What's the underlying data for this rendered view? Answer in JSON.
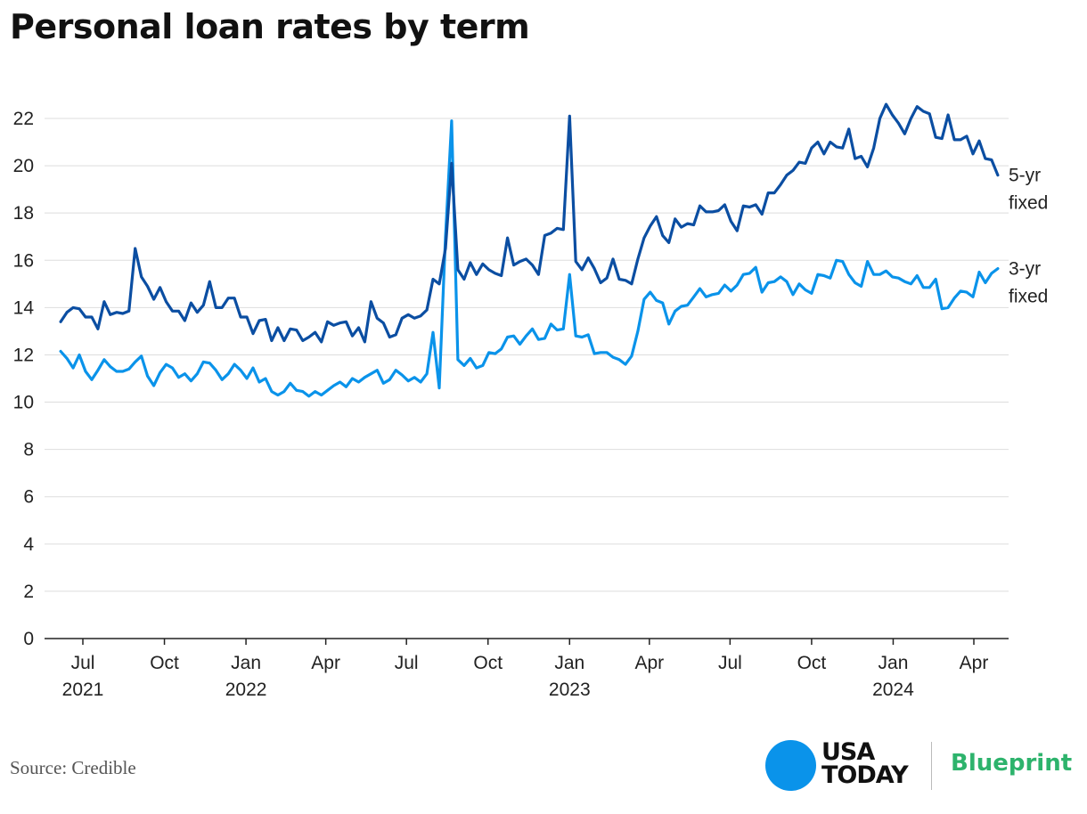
{
  "chart_data": {
    "type": "line",
    "title": "Personal loan rates by term",
    "ylim": [
      0,
      22
    ],
    "yticks": [
      0,
      2,
      4,
      6,
      8,
      10,
      12,
      14,
      16,
      18,
      20,
      22
    ],
    "grid": "horizontal",
    "xticks": [
      {
        "date": "2021-07-01",
        "label": "Jul",
        "year": "2021"
      },
      {
        "date": "2021-10-01",
        "label": "Oct",
        "year": ""
      },
      {
        "date": "2022-01-01",
        "label": "Jan",
        "year": "2022"
      },
      {
        "date": "2022-04-01",
        "label": "Apr",
        "year": ""
      },
      {
        "date": "2022-07-01",
        "label": "Jul",
        "year": ""
      },
      {
        "date": "2022-10-01",
        "label": "Oct",
        "year": ""
      },
      {
        "date": "2023-01-01",
        "label": "Jan",
        "year": "2023"
      },
      {
        "date": "2023-04-01",
        "label": "Apr",
        "year": ""
      },
      {
        "date": "2023-07-01",
        "label": "Jul",
        "year": ""
      },
      {
        "date": "2023-10-01",
        "label": "Oct",
        "year": ""
      },
      {
        "date": "2024-01-01",
        "label": "Jan",
        "year": "2024"
      },
      {
        "date": "2024-04-01",
        "label": "Apr",
        "year": ""
      }
    ],
    "x": [
      "2021-06-06",
      "2021-06-13",
      "2021-06-20",
      "2021-06-27",
      "2021-07-04",
      "2021-07-11",
      "2021-07-18",
      "2021-07-25",
      "2021-08-01",
      "2021-08-08",
      "2021-08-15",
      "2021-08-22",
      "2021-08-29",
      "2021-09-05",
      "2021-09-12",
      "2021-09-19",
      "2021-09-26",
      "2021-10-03",
      "2021-10-10",
      "2021-10-17",
      "2021-10-24",
      "2021-10-31",
      "2021-11-07",
      "2021-11-14",
      "2021-11-21",
      "2021-11-28",
      "2021-12-05",
      "2021-12-12",
      "2021-12-19",
      "2021-12-26",
      "2022-01-02",
      "2022-01-09",
      "2022-01-16",
      "2022-01-23",
      "2022-01-30",
      "2022-02-06",
      "2022-02-13",
      "2022-02-20",
      "2022-02-27",
      "2022-03-06",
      "2022-03-13",
      "2022-03-20",
      "2022-03-27",
      "2022-04-03",
      "2022-04-10",
      "2022-04-17",
      "2022-04-24",
      "2022-05-01",
      "2022-05-08",
      "2022-05-15",
      "2022-05-22",
      "2022-05-29",
      "2022-06-05",
      "2022-06-12",
      "2022-06-19",
      "2022-06-26",
      "2022-07-03",
      "2022-07-10",
      "2022-07-17",
      "2022-07-24",
      "2022-07-31",
      "2022-08-07",
      "2022-08-14",
      "2022-08-21",
      "2022-08-28",
      "2022-09-04",
      "2022-09-11",
      "2022-09-18",
      "2022-09-25",
      "2022-10-02",
      "2022-10-09",
      "2022-10-16",
      "2022-10-23",
      "2022-10-30",
      "2022-11-06",
      "2022-11-13",
      "2022-11-20",
      "2022-11-27",
      "2022-12-04",
      "2022-12-11",
      "2022-12-18",
      "2022-12-25",
      "2023-01-01",
      "2023-01-08",
      "2023-01-15",
      "2023-01-22",
      "2023-01-29",
      "2023-02-05",
      "2023-02-12",
      "2023-02-19",
      "2023-02-26",
      "2023-03-05",
      "2023-03-12",
      "2023-03-19",
      "2023-03-26",
      "2023-04-02",
      "2023-04-09",
      "2023-04-16",
      "2023-04-23",
      "2023-04-30",
      "2023-05-07",
      "2023-05-14",
      "2023-05-21",
      "2023-05-28",
      "2023-06-04",
      "2023-06-11",
      "2023-06-18",
      "2023-06-25",
      "2023-07-02",
      "2023-07-09",
      "2023-07-16",
      "2023-07-23",
      "2023-07-30",
      "2023-08-06",
      "2023-08-13",
      "2023-08-20",
      "2023-08-27",
      "2023-09-03",
      "2023-09-10",
      "2023-09-17",
      "2023-09-24",
      "2023-10-01",
      "2023-10-08",
      "2023-10-15",
      "2023-10-22",
      "2023-10-29",
      "2023-11-05",
      "2023-11-12",
      "2023-11-19",
      "2023-11-26",
      "2023-12-03",
      "2023-12-10",
      "2023-12-17",
      "2023-12-24",
      "2023-12-31",
      "2024-01-07",
      "2024-01-14",
      "2024-01-21",
      "2024-01-28",
      "2024-02-04",
      "2024-02-11",
      "2024-02-18",
      "2024-02-25",
      "2024-03-03",
      "2024-03-10",
      "2024-03-17",
      "2024-03-24",
      "2024-03-31",
      "2024-04-07",
      "2024-04-14",
      "2024-04-21",
      "2024-04-28"
    ],
    "series": [
      {
        "name": "5-yr fixed",
        "label_lines": [
          "5-yr",
          "fixed"
        ],
        "color": "#0b4ea2",
        "values": [
          13.4,
          13.8,
          14.0,
          13.95,
          13.6,
          13.6,
          13.1,
          14.25,
          13.7,
          13.8,
          13.75,
          13.85,
          16.5,
          15.3,
          14.9,
          14.35,
          14.85,
          14.25,
          13.85,
          13.85,
          13.45,
          14.2,
          13.8,
          14.1,
          15.1,
          14.0,
          14.0,
          14.4,
          14.4,
          13.6,
          13.6,
          12.9,
          13.45,
          13.5,
          12.6,
          13.15,
          12.6,
          13.1,
          13.05,
          12.6,
          12.75,
          12.95,
          12.55,
          13.4,
          13.25,
          13.35,
          13.4,
          12.8,
          13.15,
          12.55,
          14.25,
          13.55,
          13.35,
          12.75,
          12.85,
          13.55,
          13.7,
          13.55,
          13.65,
          13.9,
          15.2,
          15.0,
          16.5,
          20.1,
          15.6,
          15.2,
          15.9,
          15.4,
          15.85,
          15.6,
          15.45,
          15.35,
          16.95,
          15.8,
          15.95,
          16.05,
          15.8,
          15.4,
          17.05,
          17.15,
          17.35,
          17.3,
          22.1,
          15.95,
          15.6,
          16.1,
          15.65,
          15.05,
          15.25,
          16.05,
          15.2,
          15.15,
          15.0,
          16.05,
          16.95,
          17.45,
          17.85,
          17.05,
          16.75,
          17.75,
          17.4,
          17.55,
          17.5,
          18.3,
          18.05,
          18.05,
          18.1,
          18.35,
          17.65,
          17.25,
          18.3,
          18.25,
          18.35,
          17.95,
          18.85,
          18.85,
          19.2,
          19.6,
          19.8,
          20.15,
          20.1,
          20.75,
          21.0,
          20.5,
          21.0,
          20.8,
          20.75,
          21.55,
          20.3,
          20.4,
          19.95,
          20.75,
          22.0,
          22.6,
          22.15,
          21.8,
          21.35,
          22.0,
          22.5,
          22.3,
          22.2,
          21.2,
          21.15,
          22.15,
          21.1,
          21.1,
          21.25,
          20.5,
          21.05,
          20.3,
          20.25,
          19.6
        ]
      },
      {
        "name": "3-yr fixed",
        "label_lines": [
          "3-yr",
          "fixed"
        ],
        "color": "#0a93ea",
        "values": [
          12.15,
          11.85,
          11.45,
          12.0,
          11.3,
          10.95,
          11.35,
          11.8,
          11.5,
          11.3,
          11.3,
          11.4,
          11.7,
          11.95,
          11.1,
          10.7,
          11.25,
          11.6,
          11.45,
          11.05,
          11.2,
          10.9,
          11.2,
          11.7,
          11.65,
          11.35,
          10.95,
          11.2,
          11.6,
          11.35,
          11.0,
          11.45,
          10.85,
          11.0,
          10.45,
          10.3,
          10.45,
          10.8,
          10.5,
          10.45,
          10.25,
          10.45,
          10.3,
          10.5,
          10.7,
          10.85,
          10.65,
          11.0,
          10.85,
          11.05,
          11.2,
          11.35,
          10.8,
          10.95,
          11.35,
          11.15,
          10.9,
          11.05,
          10.85,
          11.2,
          12.95,
          10.6,
          17.0,
          21.9,
          11.8,
          11.55,
          11.85,
          11.45,
          11.55,
          12.1,
          12.05,
          12.25,
          12.75,
          12.8,
          12.45,
          12.8,
          13.1,
          12.65,
          12.7,
          13.3,
          13.05,
          13.1,
          15.4,
          12.8,
          12.75,
          12.85,
          12.05,
          12.1,
          12.1,
          11.9,
          11.8,
          11.6,
          11.95,
          13.0,
          14.35,
          14.65,
          14.3,
          14.2,
          13.3,
          13.85,
          14.05,
          14.1,
          14.45,
          14.8,
          14.45,
          14.55,
          14.6,
          14.95,
          14.7,
          14.95,
          15.4,
          15.45,
          15.7,
          14.65,
          15.05,
          15.1,
          15.3,
          15.1,
          14.55,
          15.0,
          14.75,
          14.6,
          15.4,
          15.35,
          15.25,
          16.0,
          15.95,
          15.4,
          15.05,
          14.9,
          15.95,
          15.4,
          15.4,
          15.55,
          15.3,
          15.25,
          15.1,
          15.0,
          15.35,
          14.85,
          14.85,
          15.2,
          13.95,
          14.0,
          14.4,
          14.7,
          14.65,
          14.45,
          15.5,
          15.05,
          15.45,
          15.65
        ]
      }
    ],
    "source": "Source: Credible"
  },
  "branding": {
    "usa_today_line1": "USA",
    "usa_today_line2": "TODAY",
    "blueprint": "Blueprint",
    "circle_color": "#0a93ea",
    "blueprint_color": "#2db36c"
  }
}
